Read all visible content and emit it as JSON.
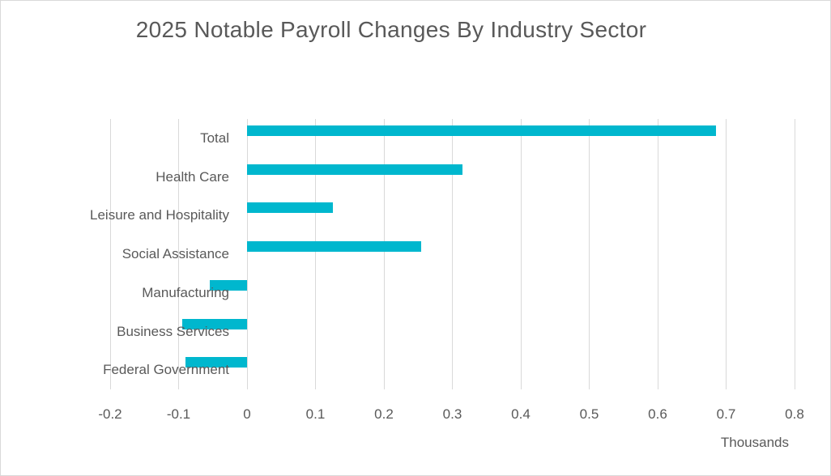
{
  "chart_data": {
    "type": "bar",
    "orientation": "horizontal",
    "title": "2025 Notable Payroll Changes By Industry Sector",
    "categories": [
      "Total",
      "Health Care",
      "Leisure and Hospitality",
      "Social Assistance",
      "Manufacturing",
      "Business Services",
      "Federal Government"
    ],
    "values": [
      0.685,
      0.315,
      0.125,
      0.255,
      -0.055,
      -0.095,
      -0.09
    ],
    "xlabel": "Thousands",
    "ylabel": "",
    "xlim": [
      -0.2,
      0.8
    ],
    "xticks": [
      -0.2,
      -0.1,
      0,
      0.1,
      0.2,
      0.3,
      0.4,
      0.5,
      0.6,
      0.7,
      0.8
    ],
    "xtick_labels": [
      "-0.2",
      "-0.1",
      "0",
      "0.1",
      "0.2",
      "0.3",
      "0.4",
      "0.5",
      "0.6",
      "0.7",
      "0.8"
    ],
    "grid": true,
    "legend": false,
    "colors": {
      "bar": "#00b7ce",
      "gridline": "#d9d9d9",
      "text": "#595959",
      "border": "#d9d9d9",
      "background": "#ffffff"
    }
  }
}
